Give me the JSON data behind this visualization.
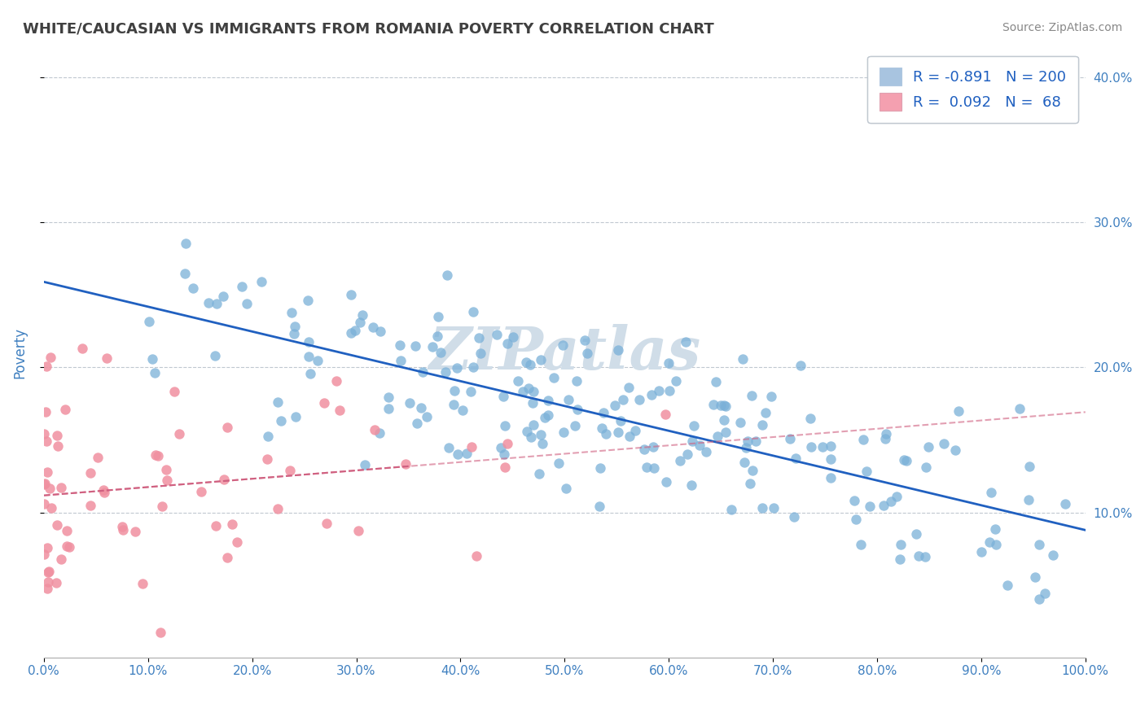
{
  "title": "WHITE/CAUCASIAN VS IMMIGRANTS FROM ROMANIA POVERTY CORRELATION CHART",
  "source_text": "Source: ZipAtlas.com",
  "xlabel": "",
  "ylabel": "Poverty",
  "r_blue": -0.891,
  "n_blue": 200,
  "r_pink": 0.092,
  "n_pink": 68,
  "blue_color": "#a8c4e0",
  "pink_color": "#f4a0b0",
  "blue_line_color": "#2060c0",
  "pink_line_color": "#d06080",
  "blue_scatter_color": "#7ab0d8",
  "pink_scatter_color": "#f090a0",
  "background_color": "#ffffff",
  "watermark_text": "ZIPatlas",
  "watermark_color": "#d0dde8",
  "title_color": "#404040",
  "axis_label_color": "#4080c0",
  "legend_r_color": "#2060c0",
  "xlim": [
    0,
    1
  ],
  "ylim_pct": [
    0,
    0.42
  ],
  "yticks": [
    0.1,
    0.2,
    0.3,
    0.4
  ],
  "xticks": [
    0.0,
    0.1,
    0.2,
    0.3,
    0.4,
    0.5,
    0.6,
    0.7,
    0.8,
    0.9,
    1.0
  ],
  "seed": 42
}
